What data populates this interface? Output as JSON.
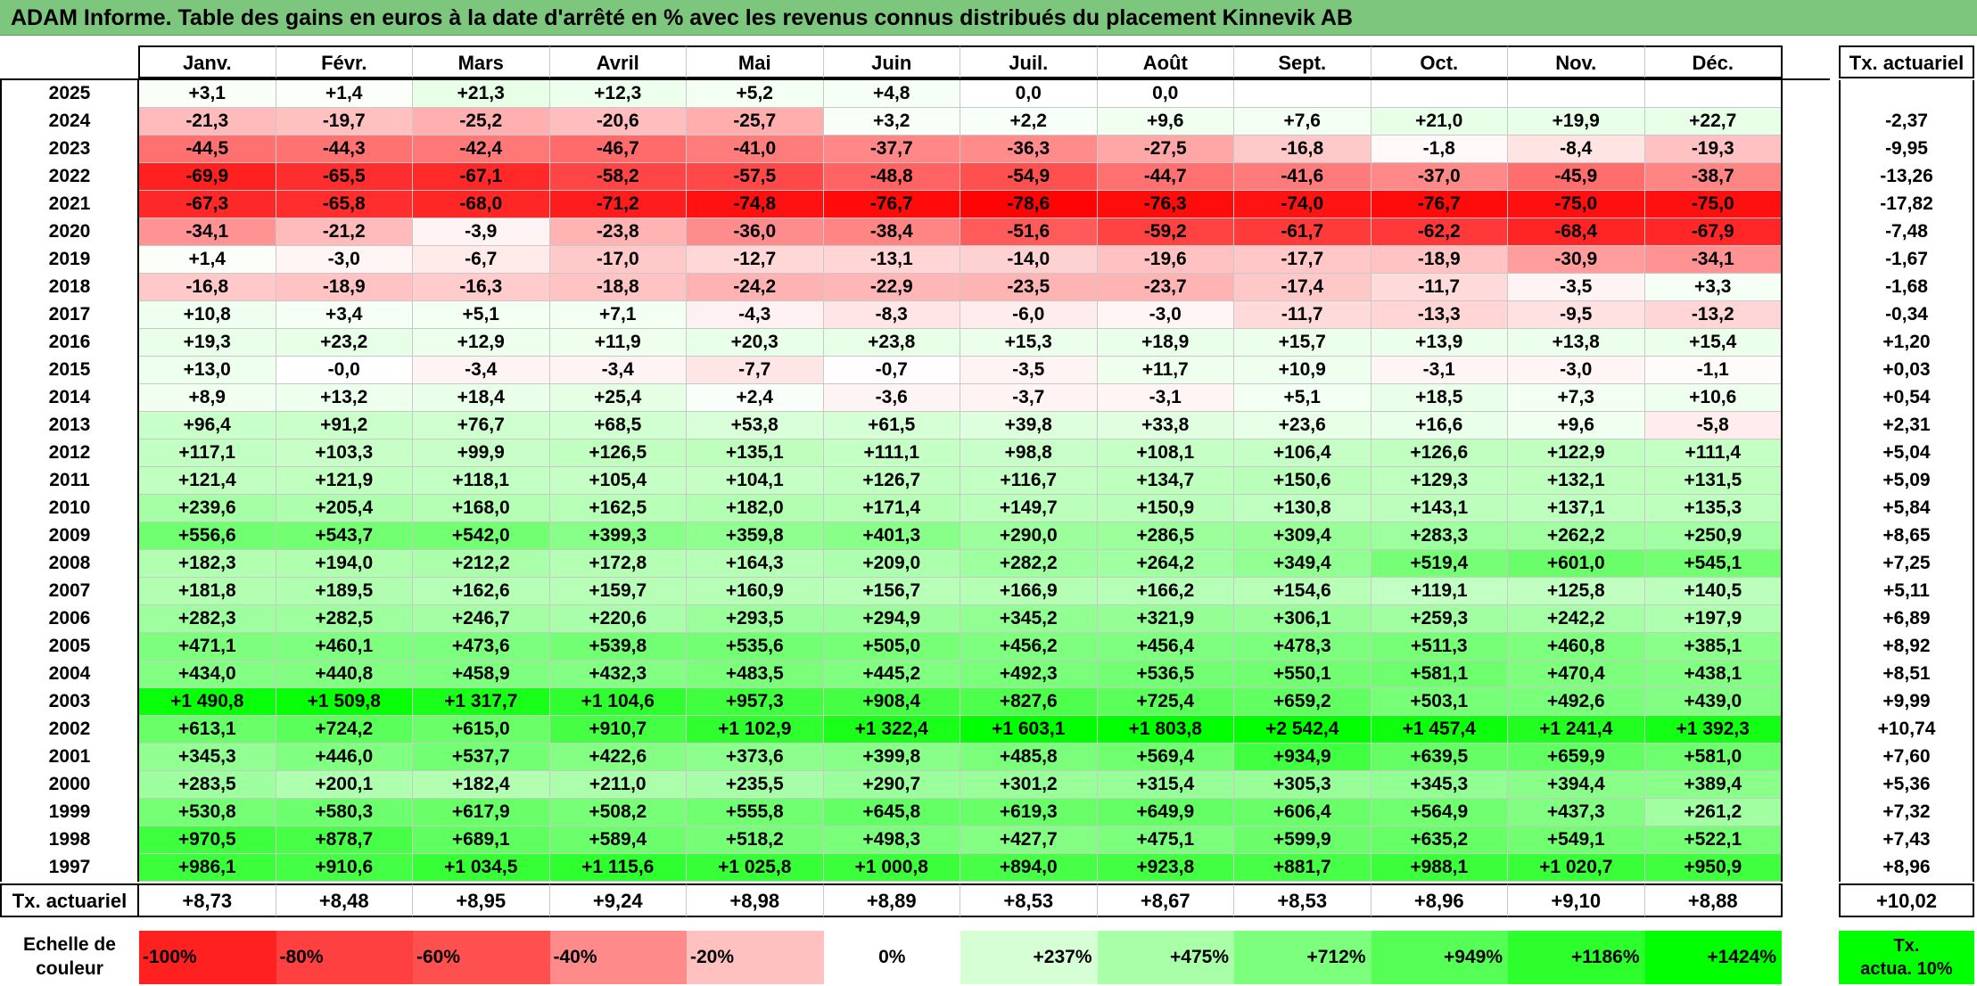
{
  "title": "ADAM Informe. Table des gains en euros à la date d'arrêté en % avec les revenus connus distribués du placement Kinnevik AB",
  "months": [
    "Janv.",
    "Févr.",
    "Mars",
    "Avril",
    "Mai",
    "Juin",
    "Juil.",
    "Août",
    "Sept.",
    "Oct.",
    "Nov.",
    "Déc."
  ],
  "tx_header": "Tx. actuariel",
  "rows": [
    {
      "year": "2025",
      "values": [
        "+3,1",
        "+1,4",
        "+21,3",
        "+12,3",
        "+5,2",
        "+4,8",
        "0,0",
        "0,0",
        "",
        "",
        "",
        ""
      ],
      "tx": ""
    },
    {
      "year": "2024",
      "values": [
        "-21,3",
        "-19,7",
        "-25,2",
        "-20,6",
        "-25,7",
        "+3,2",
        "+2,2",
        "+9,6",
        "+7,6",
        "+21,0",
        "+19,9",
        "+22,7"
      ],
      "tx": "-2,37"
    },
    {
      "year": "2023",
      "values": [
        "-44,5",
        "-44,3",
        "-42,4",
        "-46,7",
        "-41,0",
        "-37,7",
        "-36,3",
        "-27,5",
        "-16,8",
        "-1,8",
        "-8,4",
        "-19,3"
      ],
      "tx": "-9,95"
    },
    {
      "year": "2022",
      "values": [
        "-69,9",
        "-65,5",
        "-67,1",
        "-58,2",
        "-57,5",
        "-48,8",
        "-54,9",
        "-44,7",
        "-41,6",
        "-37,0",
        "-45,9",
        "-38,7"
      ],
      "tx": "-13,26"
    },
    {
      "year": "2021",
      "values": [
        "-67,3",
        "-65,8",
        "-68,0",
        "-71,2",
        "-74,8",
        "-76,7",
        "-78,6",
        "-76,3",
        "-74,0",
        "-76,7",
        "-75,0",
        "-75,0"
      ],
      "tx": "-17,82"
    },
    {
      "year": "2020",
      "values": [
        "-34,1",
        "-21,2",
        "-3,9",
        "-23,8",
        "-36,0",
        "-38,4",
        "-51,6",
        "-59,2",
        "-61,7",
        "-62,2",
        "-68,4",
        "-67,9"
      ],
      "tx": "-7,48"
    },
    {
      "year": "2019",
      "values": [
        "+1,4",
        "-3,0",
        "-6,7",
        "-17,0",
        "-12,7",
        "-13,1",
        "-14,0",
        "-19,6",
        "-17,7",
        "-18,9",
        "-30,9",
        "-34,1"
      ],
      "tx": "-1,67"
    },
    {
      "year": "2018",
      "values": [
        "-16,8",
        "-18,9",
        "-16,3",
        "-18,8",
        "-24,2",
        "-22,9",
        "-23,5",
        "-23,7",
        "-17,4",
        "-11,7",
        "-3,5",
        "+3,3"
      ],
      "tx": "-1,68"
    },
    {
      "year": "2017",
      "values": [
        "+10,8",
        "+3,4",
        "+5,1",
        "+7,1",
        "-4,3",
        "-8,3",
        "-6,0",
        "-3,0",
        "-11,7",
        "-13,3",
        "-9,5",
        "-13,2"
      ],
      "tx": "-0,34"
    },
    {
      "year": "2016",
      "values": [
        "+19,3",
        "+23,2",
        "+12,9",
        "+11,9",
        "+20,3",
        "+23,8",
        "+15,3",
        "+18,9",
        "+15,7",
        "+13,9",
        "+13,8",
        "+15,4"
      ],
      "tx": "+1,20"
    },
    {
      "year": "2015",
      "values": [
        "+13,0",
        "-0,0",
        "-3,4",
        "-3,4",
        "-7,7",
        "-0,7",
        "-3,5",
        "+11,7",
        "+10,9",
        "-3,1",
        "-3,0",
        "-1,1"
      ],
      "tx": "+0,03"
    },
    {
      "year": "2014",
      "values": [
        "+8,9",
        "+13,2",
        "+18,4",
        "+25,4",
        "+2,4",
        "-3,6",
        "-3,7",
        "-3,1",
        "+5,1",
        "+18,5",
        "+7,3",
        "+10,6"
      ],
      "tx": "+0,54"
    },
    {
      "year": "2013",
      "values": [
        "+96,4",
        "+91,2",
        "+76,7",
        "+68,5",
        "+53,8",
        "+61,5",
        "+39,8",
        "+33,8",
        "+23,6",
        "+16,6",
        "+9,6",
        "-5,8"
      ],
      "tx": "+2,31"
    },
    {
      "year": "2012",
      "values": [
        "+117,1",
        "+103,3",
        "+99,9",
        "+126,5",
        "+135,1",
        "+111,1",
        "+98,8",
        "+108,1",
        "+106,4",
        "+126,6",
        "+122,9",
        "+111,4"
      ],
      "tx": "+5,04"
    },
    {
      "year": "2011",
      "values": [
        "+121,4",
        "+121,9",
        "+118,1",
        "+105,4",
        "+104,1",
        "+126,7",
        "+116,7",
        "+134,7",
        "+150,6",
        "+129,3",
        "+132,1",
        "+131,5"
      ],
      "tx": "+5,09"
    },
    {
      "year": "2010",
      "values": [
        "+239,6",
        "+205,4",
        "+168,0",
        "+162,5",
        "+182,0",
        "+171,4",
        "+149,7",
        "+150,9",
        "+130,8",
        "+143,1",
        "+137,1",
        "+135,3"
      ],
      "tx": "+5,84"
    },
    {
      "year": "2009",
      "values": [
        "+556,6",
        "+543,7",
        "+542,0",
        "+399,3",
        "+359,8",
        "+401,3",
        "+290,0",
        "+286,5",
        "+309,4",
        "+283,3",
        "+262,2",
        "+250,9"
      ],
      "tx": "+8,65"
    },
    {
      "year": "2008",
      "values": [
        "+182,3",
        "+194,0",
        "+212,2",
        "+172,8",
        "+164,3",
        "+209,0",
        "+282,2",
        "+264,2",
        "+349,4",
        "+519,4",
        "+601,0",
        "+545,1"
      ],
      "tx": "+7,25"
    },
    {
      "year": "2007",
      "values": [
        "+181,8",
        "+189,5",
        "+162,6",
        "+159,7",
        "+160,9",
        "+156,7",
        "+166,9",
        "+166,2",
        "+154,6",
        "+119,1",
        "+125,8",
        "+140,5"
      ],
      "tx": "+5,11"
    },
    {
      "year": "2006",
      "values": [
        "+282,3",
        "+282,5",
        "+246,7",
        "+220,6",
        "+293,5",
        "+294,9",
        "+345,2",
        "+321,9",
        "+306,1",
        "+259,3",
        "+242,2",
        "+197,9"
      ],
      "tx": "+6,89"
    },
    {
      "year": "2005",
      "values": [
        "+471,1",
        "+460,1",
        "+473,6",
        "+539,8",
        "+535,6",
        "+505,0",
        "+456,2",
        "+456,4",
        "+478,3",
        "+511,3",
        "+460,8",
        "+385,1"
      ],
      "tx": "+8,92"
    },
    {
      "year": "2004",
      "values": [
        "+434,0",
        "+440,8",
        "+458,9",
        "+432,3",
        "+483,5",
        "+445,2",
        "+492,3",
        "+536,5",
        "+550,1",
        "+581,1",
        "+470,4",
        "+438,1"
      ],
      "tx": "+8,51"
    },
    {
      "year": "2003",
      "values": [
        "+1 490,8",
        "+1 509,8",
        "+1 317,7",
        "+1 104,6",
        "+957,3",
        "+908,4",
        "+827,6",
        "+725,4",
        "+659,2",
        "+503,1",
        "+492,6",
        "+439,0"
      ],
      "tx": "+9,99"
    },
    {
      "year": "2002",
      "values": [
        "+613,1",
        "+724,2",
        "+615,0",
        "+910,7",
        "+1 102,9",
        "+1 322,4",
        "+1 603,1",
        "+1 803,8",
        "+2 542,4",
        "+1 457,4",
        "+1 241,4",
        "+1 392,3"
      ],
      "tx": "+10,74"
    },
    {
      "year": "2001",
      "values": [
        "+345,3",
        "+446,0",
        "+537,7",
        "+422,6",
        "+373,6",
        "+399,8",
        "+485,8",
        "+569,4",
        "+934,9",
        "+639,5",
        "+659,9",
        "+581,0"
      ],
      "tx": "+7,60"
    },
    {
      "year": "2000",
      "values": [
        "+283,5",
        "+200,1",
        "+182,4",
        "+211,0",
        "+235,5",
        "+290,7",
        "+301,2",
        "+315,4",
        "+305,3",
        "+345,3",
        "+394,4",
        "+389,4"
      ],
      "tx": "+5,36"
    },
    {
      "year": "1999",
      "values": [
        "+530,8",
        "+580,3",
        "+617,9",
        "+508,2",
        "+555,8",
        "+645,8",
        "+619,3",
        "+649,9",
        "+606,4",
        "+564,9",
        "+437,3",
        "+261,2"
      ],
      "tx": "+7,32"
    },
    {
      "year": "1998",
      "values": [
        "+970,5",
        "+878,7",
        "+689,1",
        "+589,4",
        "+518,2",
        "+498,3",
        "+427,7",
        "+475,1",
        "+599,9",
        "+635,2",
        "+549,1",
        "+522,1"
      ],
      "tx": "+7,43"
    },
    {
      "year": "1997",
      "values": [
        "+986,1",
        "+910,6",
        "+1 034,5",
        "+1 115,6",
        "+1 025,8",
        "+1 000,8",
        "+894,0",
        "+923,8",
        "+881,7",
        "+988,1",
        "+1 020,7",
        "+950,9"
      ],
      "tx": "+8,96"
    }
  ],
  "footer": {
    "label": "Tx. actuariel",
    "values": [
      "+8,73",
      "+8,48",
      "+8,95",
      "+9,24",
      "+8,98",
      "+8,89",
      "+8,53",
      "+8,67",
      "+8,53",
      "+8,96",
      "+9,10",
      "+8,88"
    ],
    "tx": "+10,02"
  },
  "scale": {
    "label_line1": "Echelle de",
    "label_line2": "couleur",
    "steps": [
      {
        "label": "-100%",
        "color": "#ff2020",
        "align": "left"
      },
      {
        "label": "-80%",
        "color": "#ff4040",
        "align": "left"
      },
      {
        "label": "-60%",
        "color": "#ff5050",
        "align": "left"
      },
      {
        "label": "-40%",
        "color": "#ff8a8a",
        "align": "left"
      },
      {
        "label": "-20%",
        "color": "#ffc0c0",
        "align": "left"
      },
      {
        "label": "0%",
        "color": "#ffffff",
        "align": "center"
      },
      {
        "label": "+237%",
        "color": "#d6ffd6",
        "align": "right"
      },
      {
        "label": "+475%",
        "color": "#a8ffa8",
        "align": "right"
      },
      {
        "label": "+712%",
        "color": "#7cff7c",
        "align": "right"
      },
      {
        "label": "+949%",
        "color": "#55ff55",
        "align": "right"
      },
      {
        "label": "+1186%",
        "color": "#2cff2c",
        "align": "right"
      },
      {
        "label": "+1424%",
        "color": "#00ff00",
        "align": "right"
      }
    ],
    "tx_label": "Tx.\nactua. 10%"
  }
}
